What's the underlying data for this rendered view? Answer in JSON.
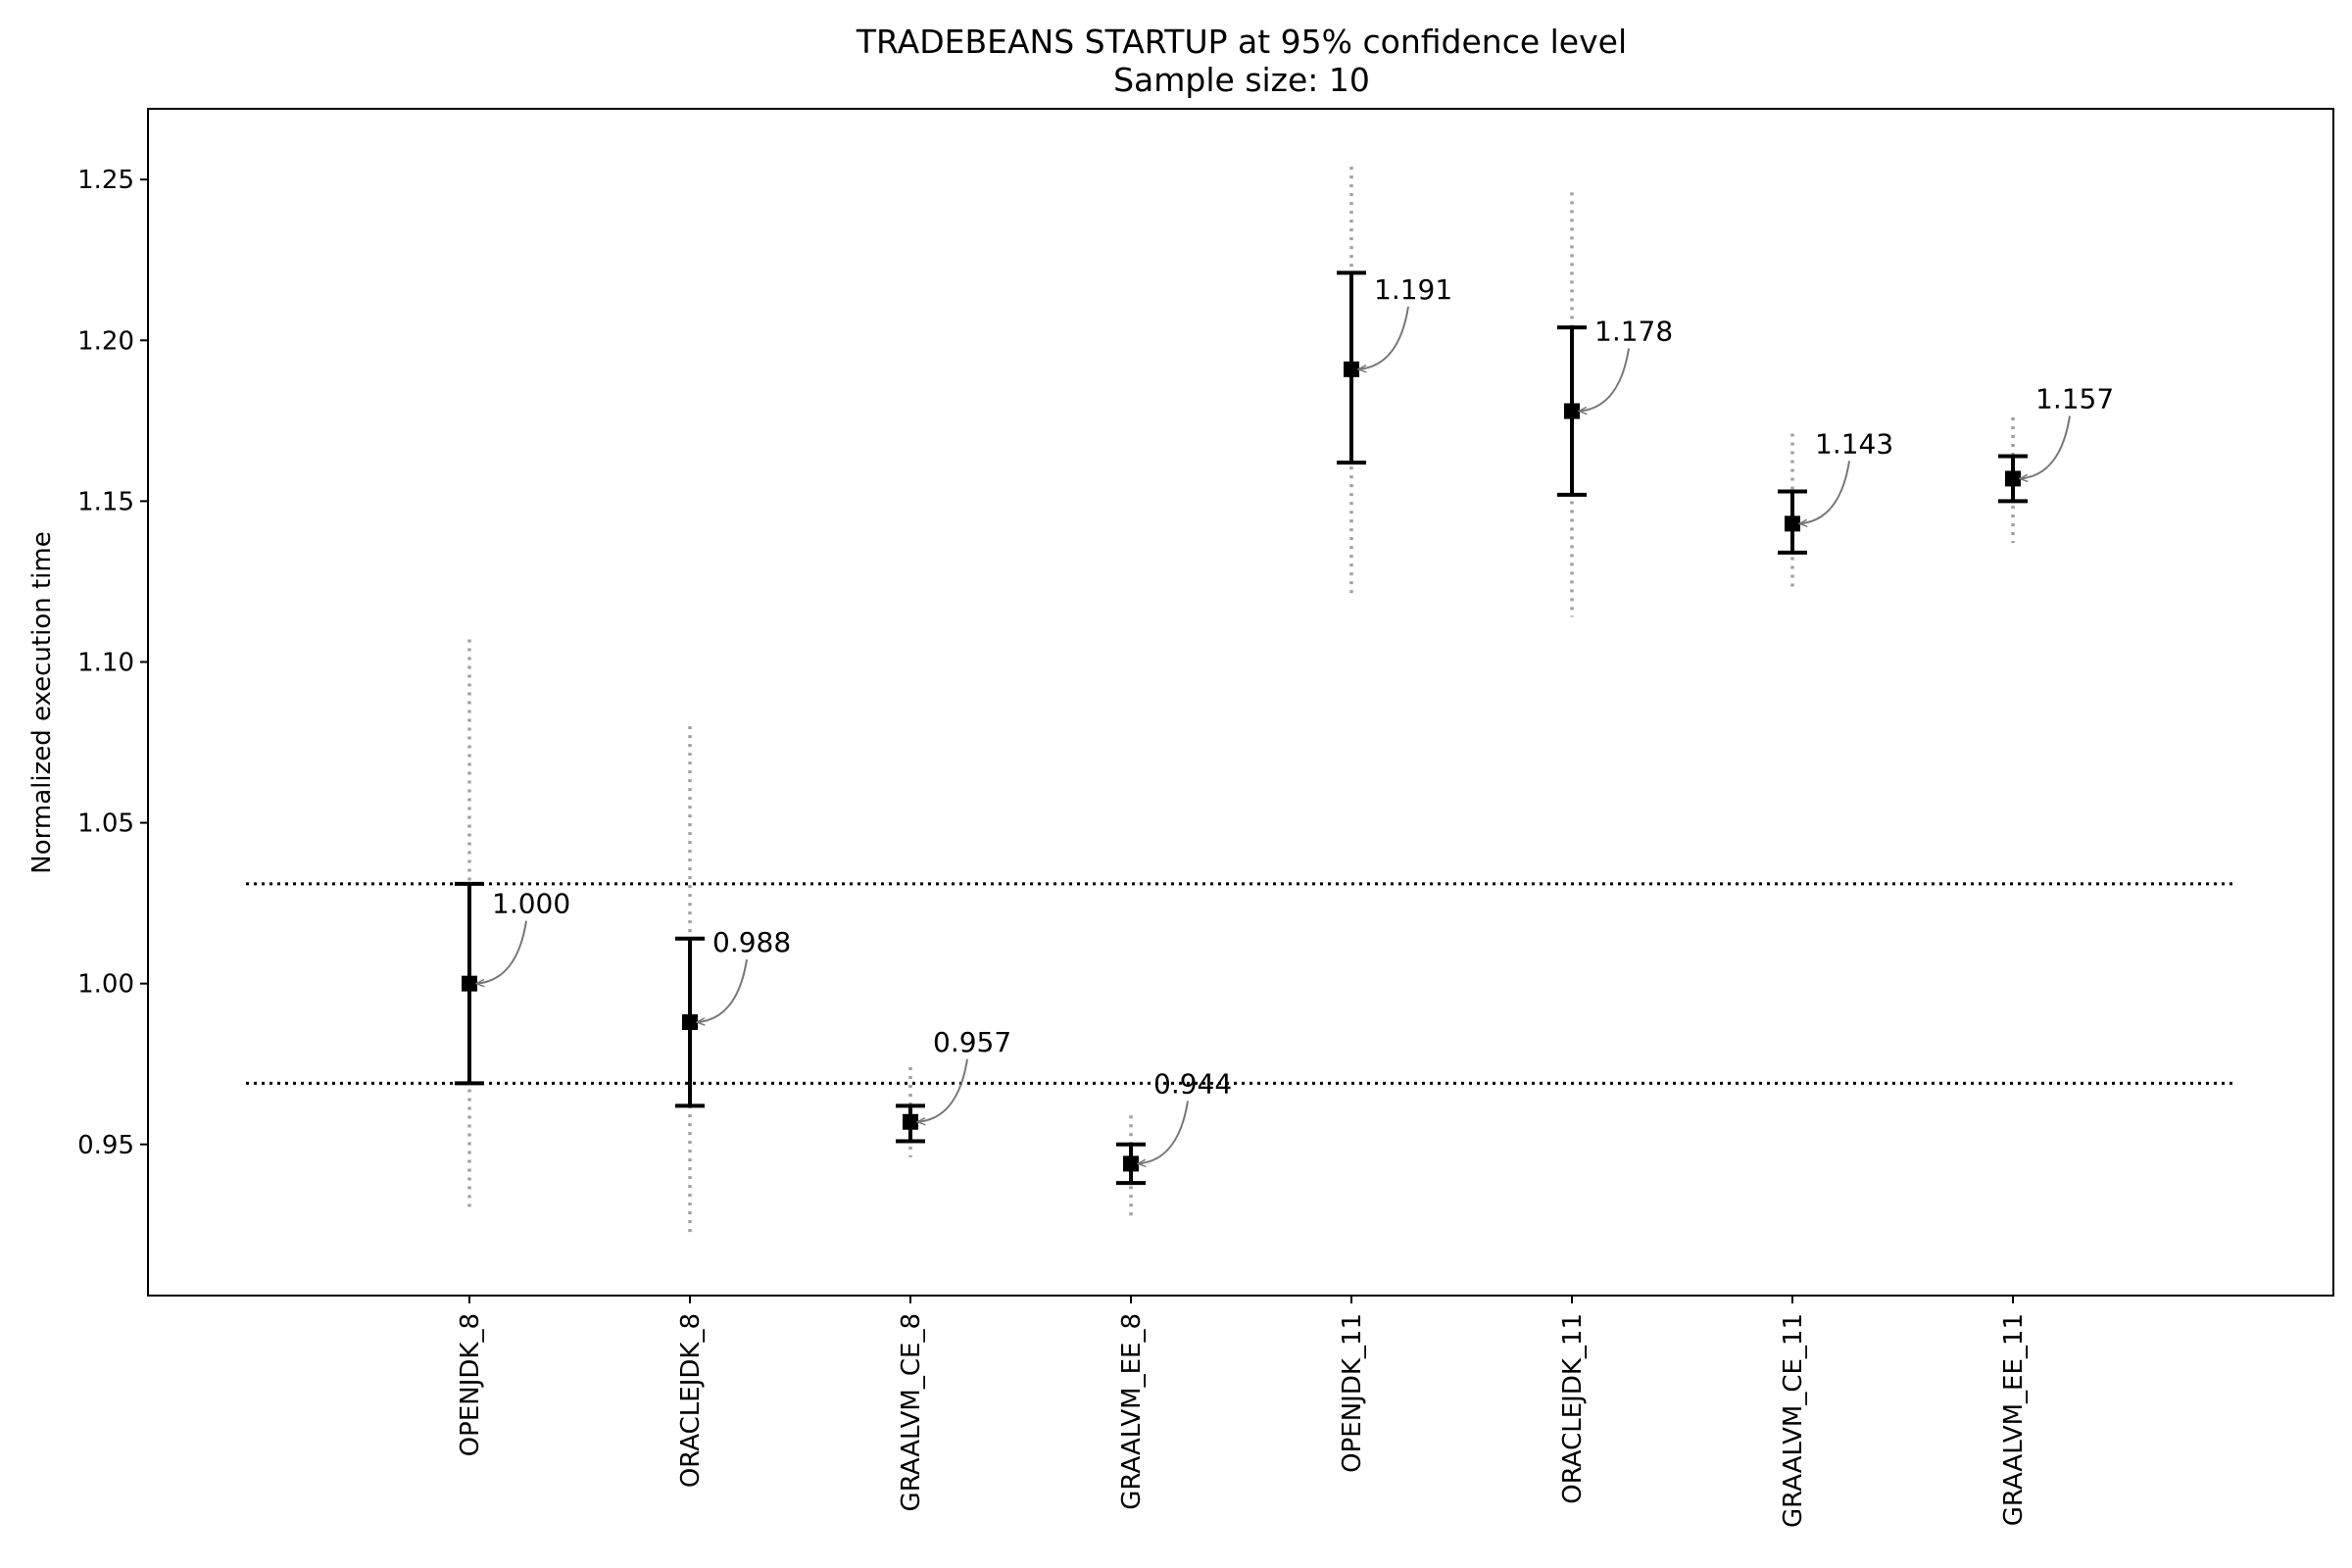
{
  "chart_data": {
    "type": "errorbar",
    "title": "TRADEBEANS STARTUP at 95% confidence level",
    "subtitle": "Sample size: 10",
    "xlabel": "",
    "ylabel": "Normalized execution time",
    "ylim": [
      0.903,
      1.272
    ],
    "yticks": [
      "0.95",
      "1.00",
      "1.05",
      "1.10",
      "1.15",
      "1.20",
      "1.25"
    ],
    "grid": false,
    "reference_lines": [
      0.969,
      1.031
    ],
    "points": [
      {
        "category": "OPENJDK_8",
        "value": 1.0,
        "label": "1.000",
        "ci": [
          0.969,
          1.031
        ],
        "range": [
          0.93,
          1.107
        ]
      },
      {
        "category": "ORACLEJDK_8",
        "value": 0.988,
        "label": "0.988",
        "ci": [
          0.962,
          1.014
        ],
        "range": [
          0.921,
          1.08
        ]
      },
      {
        "category": "GRAALVM_CE_8",
        "value": 0.957,
        "label": "0.957",
        "ci": [
          0.951,
          0.962
        ],
        "range": [
          0.946,
          0.974
        ]
      },
      {
        "category": "GRAALVM_EE_8",
        "value": 0.944,
        "label": "0.944",
        "ci": [
          0.938,
          0.95
        ],
        "range": [
          0.927,
          0.959
        ]
      },
      {
        "category": "OPENJDK_11",
        "value": 1.191,
        "label": "1.191",
        "ci": [
          1.162,
          1.221
        ],
        "range": [
          1.121,
          1.254
        ]
      },
      {
        "category": "ORACLEJDK_11",
        "value": 1.178,
        "label": "1.178",
        "ci": [
          1.152,
          1.204
        ],
        "range": [
          1.114,
          1.246
        ]
      },
      {
        "category": "GRAALVM_CE_11",
        "value": 1.143,
        "label": "1.143",
        "ci": [
          1.134,
          1.153
        ],
        "range": [
          1.122,
          1.171
        ]
      },
      {
        "category": "GRAALVM_EE_11",
        "value": 1.157,
        "label": "1.157",
        "ci": [
          1.15,
          1.164
        ],
        "range": [
          1.137,
          1.176
        ]
      }
    ]
  }
}
